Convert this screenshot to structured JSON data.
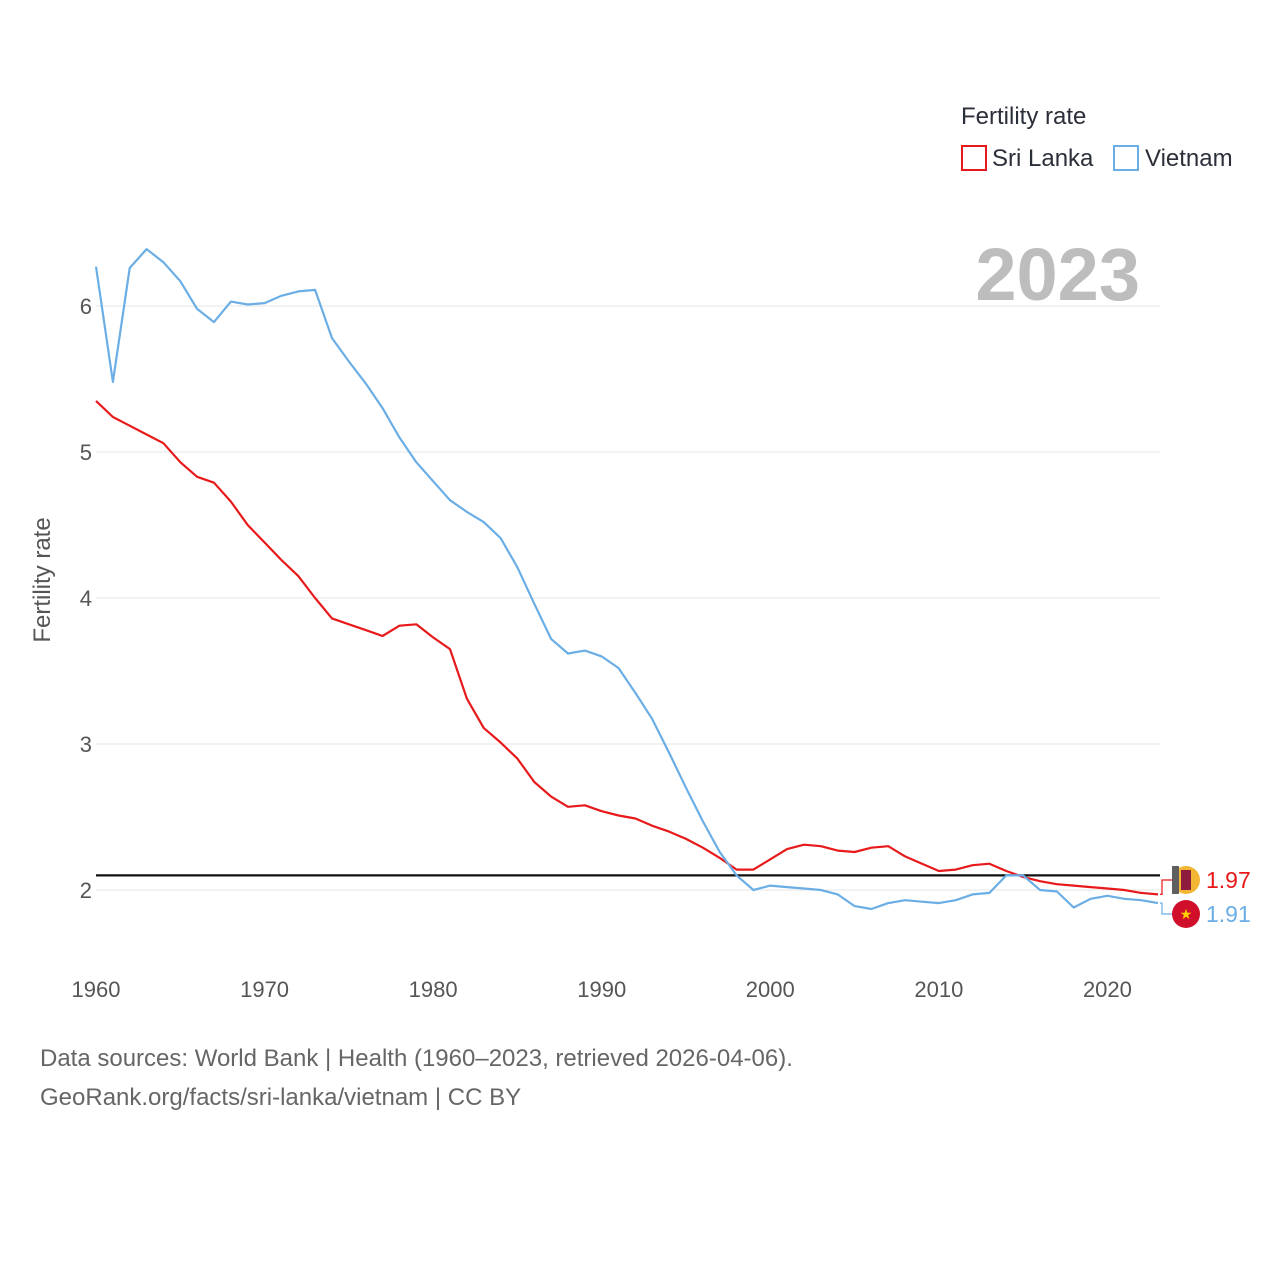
{
  "chart_data": {
    "type": "line",
    "ylabel": "Fertility rate",
    "xlabel": "",
    "xlim": [
      1960,
      2023
    ],
    "ylim": [
      1.5,
      6.6
    ],
    "xticks": [
      1960,
      1970,
      1980,
      1990,
      2000,
      2010,
      2020
    ],
    "yticks": [
      2,
      3,
      4,
      5,
      6
    ],
    "grid": true,
    "reference_line": 2.1,
    "legend": {
      "title": "Fertility rate",
      "position": "top-right"
    },
    "year_label": "2023",
    "x": [
      1960,
      1961,
      1962,
      1963,
      1964,
      1965,
      1966,
      1967,
      1968,
      1969,
      1970,
      1971,
      1972,
      1973,
      1974,
      1975,
      1976,
      1977,
      1978,
      1979,
      1980,
      1981,
      1982,
      1983,
      1984,
      1985,
      1986,
      1987,
      1988,
      1989,
      1990,
      1991,
      1992,
      1993,
      1994,
      1995,
      1996,
      1997,
      1998,
      1999,
      2000,
      2001,
      2002,
      2003,
      2004,
      2005,
      2006,
      2007,
      2008,
      2009,
      2010,
      2011,
      2012,
      2013,
      2014,
      2015,
      2016,
      2017,
      2018,
      2019,
      2020,
      2021,
      2022,
      2023
    ],
    "series": [
      {
        "name": "Sri Lanka",
        "color": "#e8191a",
        "end_label": "1.97",
        "values": [
          5.35,
          5.24,
          5.18,
          5.12,
          5.06,
          4.93,
          4.83,
          4.79,
          4.66,
          4.5,
          4.38,
          4.26,
          4.15,
          4.0,
          3.86,
          3.82,
          3.78,
          3.74,
          3.81,
          3.82,
          3.73,
          3.65,
          3.31,
          3.11,
          3.01,
          2.9,
          2.74,
          2.64,
          2.57,
          2.58,
          2.54,
          2.51,
          2.49,
          2.44,
          2.4,
          2.35,
          2.29,
          2.22,
          2.14,
          2.14,
          2.21,
          2.28,
          2.31,
          2.3,
          2.27,
          2.26,
          2.29,
          2.3,
          2.23,
          2.18,
          2.13,
          2.14,
          2.17,
          2.18,
          2.13,
          2.09,
          2.06,
          2.04,
          2.03,
          2.02,
          2.01,
          2.0,
          1.98,
          1.97
        ]
      },
      {
        "name": "Vietnam",
        "color": "#6aaee5",
        "end_label": "1.91",
        "values": [
          6.27,
          5.48,
          6.26,
          6.39,
          6.3,
          6.17,
          5.98,
          5.89,
          6.03,
          6.01,
          6.02,
          6.07,
          6.1,
          6.11,
          5.78,
          5.62,
          5.47,
          5.3,
          5.1,
          4.93,
          4.8,
          4.67,
          4.59,
          4.52,
          4.41,
          4.21,
          3.96,
          3.72,
          3.62,
          3.64,
          3.6,
          3.52,
          3.35,
          3.17,
          2.94,
          2.7,
          2.47,
          2.26,
          2.1,
          2.0,
          2.03,
          2.02,
          2.01,
          2.0,
          1.97,
          1.89,
          1.87,
          1.91,
          1.93,
          1.92,
          1.91,
          1.93,
          1.97,
          1.98,
          2.1,
          2.1,
          2.0,
          1.99,
          1.88,
          1.94,
          1.96,
          1.94,
          1.93,
          1.91
        ]
      }
    ]
  },
  "footer": {
    "line1": "Data sources: World Bank | Health (1960–2023, retrieved 2026-04-06).",
    "line2": "GeoRank.org/facts/sri-lanka/vietnam | CC BY"
  },
  "colors": {
    "grid": "#e6e6e6",
    "reference": "#111111",
    "tick_text": "#555555",
    "year_watermark": "#bdbdbd"
  }
}
